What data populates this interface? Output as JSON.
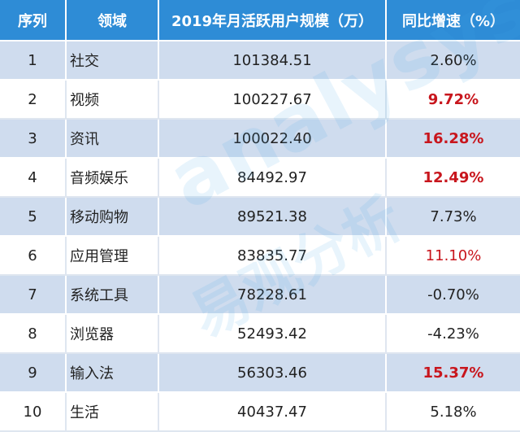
{
  "headers": {
    "index": "序列",
    "field": "领域",
    "mau": "2019年月活跃用户规模（万）",
    "yoy": "同比增速（%）"
  },
  "rows": [
    {
      "index": "1",
      "field": "社交",
      "mau": "101384.51",
      "yoy": "2.60%"
    },
    {
      "index": "2",
      "field": "视频",
      "mau": "100227.67",
      "yoy": "9.72%"
    },
    {
      "index": "3",
      "field": "资讯",
      "mau": "100022.40",
      "yoy": "16.28%"
    },
    {
      "index": "4",
      "field": "音频娱乐",
      "mau": "84492.97",
      "yoy": "12.49%"
    },
    {
      "index": "5",
      "field": "移动购物",
      "mau": "89521.38",
      "yoy": "7.73%"
    },
    {
      "index": "6",
      "field": "应用管理",
      "mau": "83835.77",
      "yoy": "11.10%"
    },
    {
      "index": "7",
      "field": "系统工具",
      "mau": "78228.61",
      "yoy": "-0.70%"
    },
    {
      "index": "8",
      "field": "浏览器",
      "mau": "52493.42",
      "yoy": "-4.23%"
    },
    {
      "index": "9",
      "field": "输入法",
      "mau": "56303.46",
      "yoy": "15.37%"
    },
    {
      "index": "10",
      "field": "生活",
      "mau": "40437.47",
      "yoy": "5.18%"
    }
  ],
  "watermark": {
    "latin": "analysys",
    "chinese": "易观分析"
  },
  "colors": {
    "header_bg": "#2e8cd6",
    "row_shade": "#cfdcee",
    "highlight": "#c8161d"
  }
}
